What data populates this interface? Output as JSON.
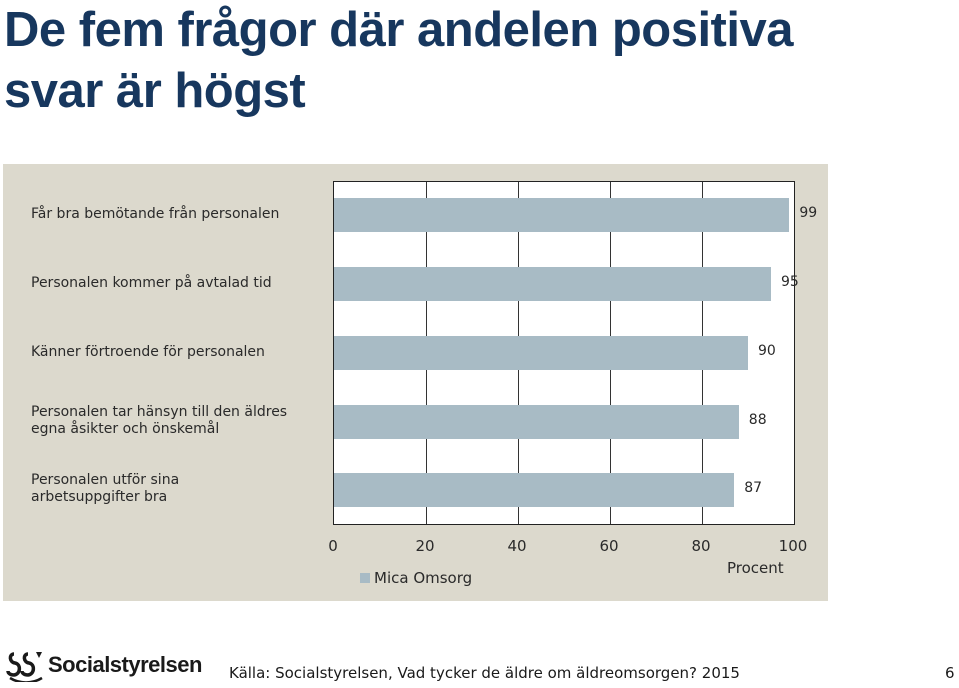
{
  "slide": {
    "title_line1": "De fem frågor där andelen positiva",
    "title_line2": "svar är högst",
    "source": "Källa: Socialstyrelsen, Vad tycker de äldre om äldreomsorgen? 2015",
    "page_number": "6",
    "logo_text": "Socialstyrelsen"
  },
  "chart_data": {
    "type": "bar",
    "orientation": "horizontal",
    "categories": [
      "Får bra bemötande från personalen",
      "Personalen kommer på avtalad tid",
      "Känner förtroende för personalen",
      "Personalen tar hänsyn till den äldres egna åsikter och önskemål",
      "Personalen utför sina arbetsuppgifter bra"
    ],
    "category_lines": [
      [
        "Får bra bemötande från personalen"
      ],
      [
        "Personalen kommer på avtalad tid"
      ],
      [
        "Känner förtroende för personalen"
      ],
      [
        "Personalen tar hänsyn till den äldres",
        "egna åsikter och önskemål"
      ],
      [
        "Personalen utför sina",
        "arbetsuppgifter bra"
      ]
    ],
    "series": [
      {
        "name": "Mica Omsorg",
        "values": [
          99,
          95,
          90,
          88,
          87
        ],
        "color": "#a8bbc5"
      }
    ],
    "data_labels": [
      "99",
      "95",
      "90",
      "88",
      "87"
    ],
    "xlim": [
      0,
      100
    ],
    "xticks": [
      0,
      20,
      40,
      60,
      80,
      100
    ],
    "xtick_labels": [
      "0",
      "20",
      "40",
      "60",
      "80",
      "100"
    ],
    "xlabel": "Procent",
    "grid": true,
    "legend": "bottom"
  }
}
